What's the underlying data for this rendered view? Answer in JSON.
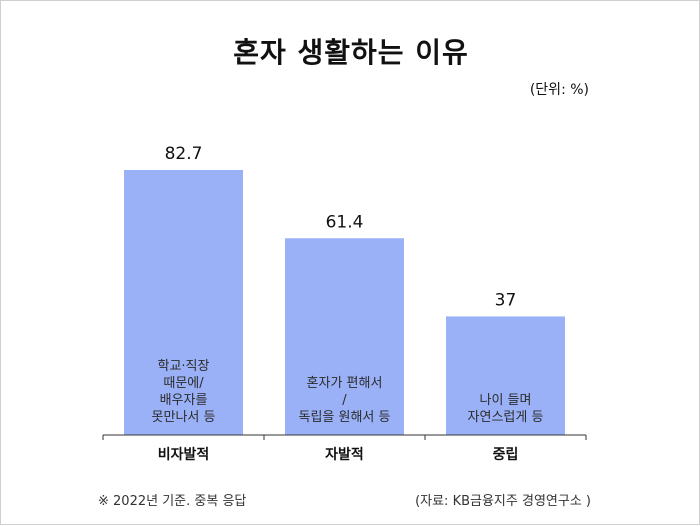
{
  "chart_data": {
    "type": "bar",
    "title": "혼자 생활하는 이유",
    "unit": "(단위: %)",
    "categories": [
      "비자발적",
      "자발적",
      "중립"
    ],
    "values": [
      82.7,
      61.4,
      37
    ],
    "value_labels": [
      "82.7",
      "61.4",
      "37"
    ],
    "bar_descriptions": [
      [
        "학교·직장",
        "때문에/",
        "배우자를",
        "못만나서 등"
      ],
      [
        "혼자가 편해서",
        "/",
        "독립을 원해서 등"
      ],
      [
        "나이 들며",
        "자연스럽게 등"
      ]
    ],
    "bar_color": "#9bb1f7",
    "ylim": [
      0,
      100
    ]
  },
  "footnote": "※ 2022년 기준. 중복 응답",
  "source": "(자료: KB금융지주 경영연구소 )"
}
